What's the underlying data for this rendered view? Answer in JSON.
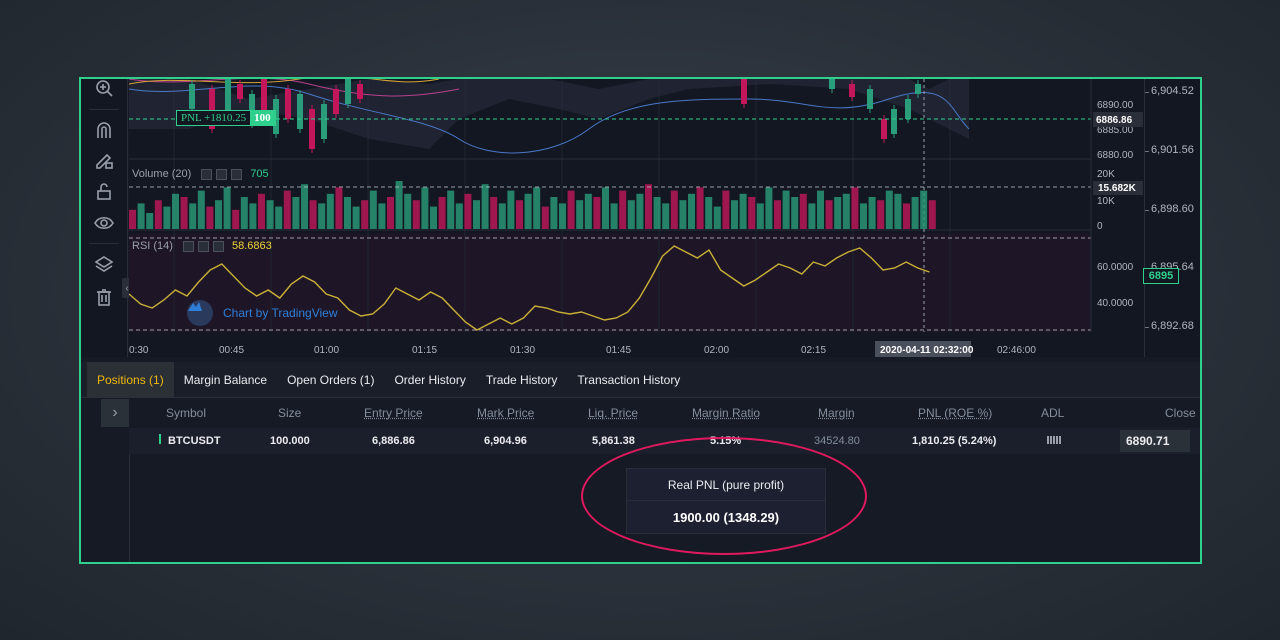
{
  "chart": {
    "pnl_tag_label": "PNL +1810.25",
    "pnl_tag_qty": "100",
    "volume_label": "Volume (20)",
    "volume_value": "705",
    "rsi_label": "RSI (14)",
    "rsi_value": "58.6863",
    "watermark": "Chart by TradingView",
    "inner_price_labels": [
      "6890.00",
      "6885.00",
      "6880.00"
    ],
    "inner_price_highlight": "6886.86",
    "volume_scale": [
      "20K",
      "10K",
      "0"
    ],
    "volume_highlight": "15.682K",
    "rsi_scale": [
      "60.0000",
      "40.0000"
    ],
    "time_labels": [
      "0:30",
      "00:45",
      "01:00",
      "01:15",
      "01:30",
      "01:45",
      "02:00",
      "02:15",
      "02:46:00"
    ],
    "crosshair_time": "2020-04-11 02:32:00",
    "right_scale": [
      "6,904.52",
      "6,901.56",
      "6,898.60",
      "6,895.64",
      "6,892.68"
    ],
    "right_current": "6895",
    "up_color": "#2a9d7a",
    "down_color": "#c2185b",
    "rsi_line_color": "#c9b037"
  },
  "tabs": [
    {
      "label": "Positions (1)",
      "active": true
    },
    {
      "label": "Margin Balance"
    },
    {
      "label": "Open Orders (1)"
    },
    {
      "label": "Order History"
    },
    {
      "label": "Trade History"
    },
    {
      "label": "Transaction History"
    }
  ],
  "table": {
    "headers": [
      "Symbol",
      "Size",
      "Entry Price",
      "Mark Price",
      "Liq. Price",
      "Margin Ratio",
      "Margin",
      "PNL (ROE %)",
      "ADL",
      "Close P"
    ],
    "row": {
      "symbol": "BTCUSDT",
      "size": "100.000",
      "entry_price": "6,886.86",
      "mark_price": "6,904.96",
      "liq_price": "5,861.38",
      "margin_ratio": "5.15%",
      "margin": "34524.80",
      "pnl": "1,810.25 (5.24%)",
      "close_price": "6890.71"
    }
  },
  "pnl_box": {
    "title": "Real PNL (pure profit)",
    "value": "1900.00 (1348.29)"
  },
  "colors": {
    "frame_border": "#2fd08d",
    "highlight_ellipse": "#e0195f",
    "active_tab": "#f0b90b"
  },
  "icons": [
    "zoom-icon",
    "magnet-icon",
    "pencil-lock-icon",
    "unlock-icon",
    "eye-icon",
    "layers-icon",
    "trash-icon",
    "chevron-right-icon",
    "tradingview-logo"
  ]
}
